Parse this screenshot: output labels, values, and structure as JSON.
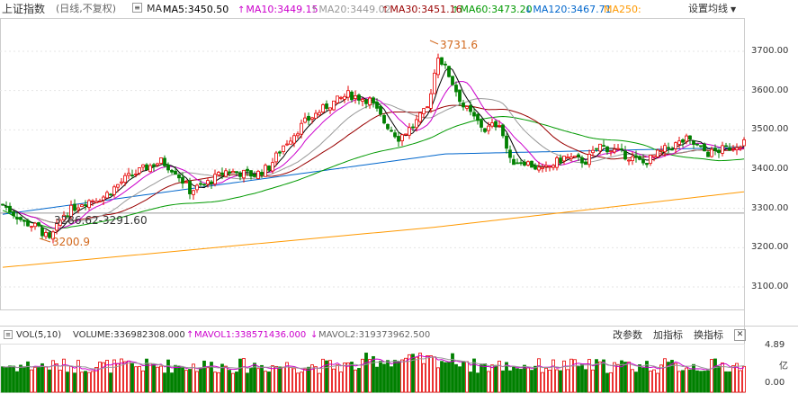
{
  "header": {
    "title": "上证指数",
    "subtitle": "(日线,不复权)",
    "settings_label": "设置均线"
  },
  "ma": {
    "label": "MA",
    "items": [
      {
        "name": "MA5",
        "value": "3450.50",
        "dir": "",
        "color": "#000000"
      },
      {
        "name": "MA10",
        "value": "3449.15",
        "dir": "up",
        "color": "#cc00cc"
      },
      {
        "name": "MA20",
        "value": "3449.02",
        "dir": "up",
        "color": "#999999"
      },
      {
        "name": "MA30",
        "value": "3451.16",
        "dir": "up",
        "color": "#990000"
      },
      {
        "name": "MA60",
        "value": "3473.20",
        "dir": "up",
        "color": "#009900"
      },
      {
        "name": "MA120",
        "value": "3467.71",
        "dir": "down",
        "color": "#0066cc"
      },
      {
        "name": "MA250",
        "value": "",
        "dir": "",
        "color": "#ff9900"
      }
    ]
  },
  "price_axis": {
    "ticks": [
      "3700.00",
      "3600.00",
      "3500.00",
      "3400.00",
      "3300.00",
      "3200.00",
      "3100.00"
    ]
  },
  "annotations": {
    "high_label": "3731.6",
    "low_label": "3200.9",
    "range_label": "3286.62-3291.60"
  },
  "volume": {
    "label": "VOL(5,10)",
    "volume_text": "VOLUME:336982308.000",
    "mavol1_text": "MAVOL1:338571436.000",
    "mavol1_dir": "up",
    "mavol2_text": "MAVOL2:319373962.500",
    "mavol2_dir": "down",
    "axis_ticks": [
      "4.89",
      "0.00"
    ],
    "axis_unit": "亿",
    "buttons": {
      "change_params": "改参数",
      "add_indicator": "加指标",
      "switch_indicator": "换指标",
      "close": "✕"
    }
  },
  "colors": {
    "up": "#e60000",
    "down": "#008000",
    "ma5": "#000000",
    "ma10": "#cc00cc",
    "ma20": "#999999",
    "ma30": "#990000",
    "ma60": "#009900",
    "ma120": "#0066cc",
    "ma250": "#ff9900"
  }
}
